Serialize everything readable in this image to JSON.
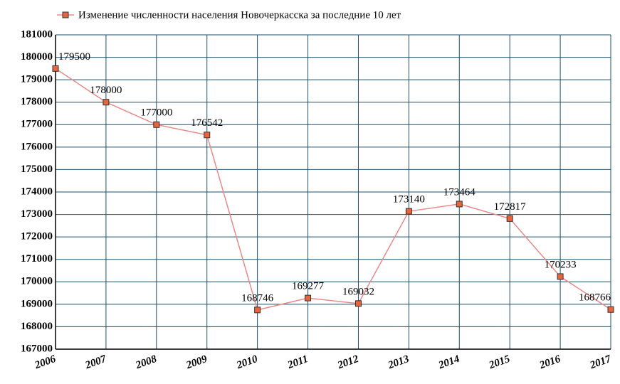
{
  "chart_data": {
    "type": "line",
    "categories": [
      "2006",
      "2007",
      "2008",
      "2009",
      "2010",
      "2011",
      "2012",
      "2013",
      "2014",
      "2015",
      "2016",
      "2017"
    ],
    "series": [
      {
        "name": "Изменение численности населения Новочеркасска за последние 10 лет",
        "color": "#e88a8a",
        "marker_color": "#e8643c",
        "values": [
          179500,
          178000,
          177000,
          176542,
          168746,
          169277,
          169032,
          173140,
          173464,
          172817,
          170233,
          168766
        ]
      }
    ],
    "ylim": [
      167000,
      181000
    ],
    "yticks": [
      167000,
      168000,
      169000,
      170000,
      171000,
      172000,
      173000,
      174000,
      175000,
      176000,
      177000,
      178000,
      179000,
      180000,
      181000
    ],
    "grid": true,
    "legend": "top"
  }
}
